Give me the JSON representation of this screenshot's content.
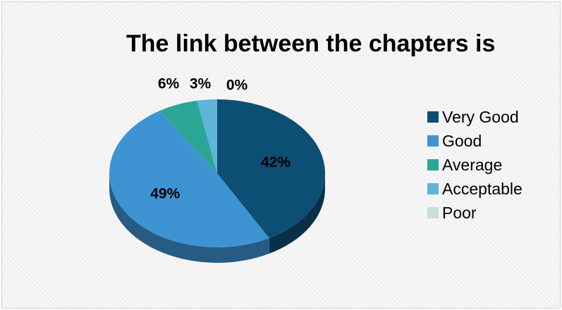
{
  "chart_data": {
    "type": "pie",
    "title": "The link between the chapters is",
    "categories": [
      "Very Good",
      "Good",
      "Average",
      "Acceptable",
      "Poor"
    ],
    "values": [
      42,
      49,
      6,
      3,
      0
    ],
    "labels": [
      "42%",
      "49%",
      "6%",
      "3%",
      "0%"
    ],
    "colors": [
      "#0d4e74",
      "#3e93d3",
      "#2aa696",
      "#5fb4d8",
      "#c7e0d0"
    ],
    "legend_position": "right",
    "style": "3d"
  }
}
